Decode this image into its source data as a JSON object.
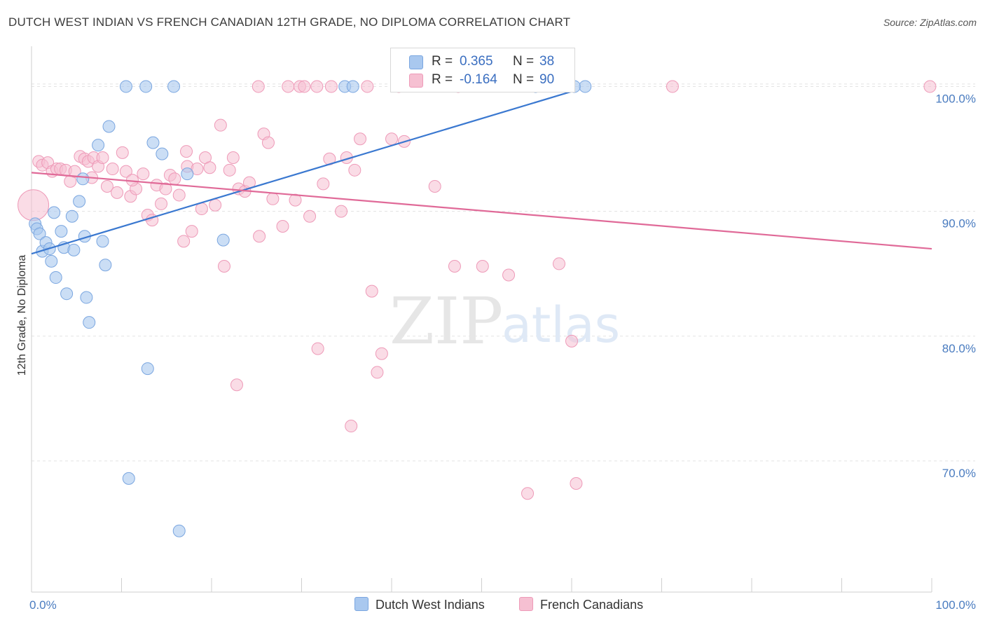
{
  "title": "DUTCH WEST INDIAN VS FRENCH CANADIAN 12TH GRADE, NO DIPLOMA CORRELATION CHART",
  "source": "Source: ZipAtlas.com",
  "watermark": {
    "zip": "ZIP",
    "atlas": "atlas"
  },
  "legend": {
    "rows": [
      {
        "r_label": "R =",
        "r_value": "0.365",
        "n_label": "N =",
        "n_value": "38"
      },
      {
        "r_label": "R =",
        "r_value": "-0.164",
        "n_label": "N =",
        "n_value": "90"
      }
    ]
  },
  "bottom_legend": {
    "series1": "Dutch West Indians",
    "series2": "French Canadians"
  },
  "colors": {
    "blue_fill": "#a9c8ef",
    "blue_stroke": "#7aa6e0",
    "blue_line": "#3a78d0",
    "pink_fill": "#f6c0d2",
    "pink_stroke": "#ee9ab8",
    "pink_line": "#e06a98"
  },
  "chart_data": {
    "type": "scatter",
    "xlabel": "",
    "ylabel": "12th Grade, No Diploma",
    "xlim": [
      0,
      100
    ],
    "ylim": [
      59.5,
      103
    ],
    "x_tick_labels": [
      "0.0%",
      "100.0%"
    ],
    "y_ticks": [
      70,
      80,
      90,
      100
    ],
    "y_tick_labels": [
      "70.0%",
      "80.0%",
      "90.0%",
      "100.0%"
    ],
    "series": [
      {
        "name": "Dutch West Indians",
        "r": 0.365,
        "n": 38,
        "trend": {
          "x": [
            0,
            60
          ],
          "y": [
            86.6,
            99.6
          ]
        },
        "points": [
          [
            0.4,
            89.0
          ],
          [
            0.6,
            88.6
          ],
          [
            0.9,
            88.2
          ],
          [
            1.2,
            86.8
          ],
          [
            1.6,
            87.5
          ],
          [
            2.0,
            87.0
          ],
          [
            2.2,
            86.0
          ],
          [
            2.5,
            89.9
          ],
          [
            2.7,
            84.7
          ],
          [
            3.3,
            88.4
          ],
          [
            3.9,
            83.4
          ],
          [
            3.6,
            87.1
          ],
          [
            4.7,
            86.9
          ],
          [
            4.5,
            89.6
          ],
          [
            5.3,
            90.8
          ],
          [
            5.7,
            92.6
          ],
          [
            6.1,
            83.1
          ],
          [
            6.4,
            81.1
          ],
          [
            5.9,
            88.0
          ],
          [
            7.4,
            95.3
          ],
          [
            7.9,
            87.6
          ],
          [
            8.2,
            85.7
          ],
          [
            8.6,
            96.8
          ],
          [
            10.5,
            100
          ],
          [
            12.7,
            100
          ],
          [
            10.8,
            68.6
          ],
          [
            12.9,
            77.4
          ],
          [
            13.5,
            95.5
          ],
          [
            14.5,
            94.6
          ],
          [
            15.8,
            100
          ],
          [
            17.3,
            93.0
          ],
          [
            16.4,
            64.4
          ],
          [
            21.3,
            87.7
          ],
          [
            34.8,
            100
          ],
          [
            35.7,
            100
          ],
          [
            56.0,
            100
          ],
          [
            61.5,
            100
          ],
          [
            60.3,
            100
          ]
        ]
      },
      {
        "name": "French Canadians",
        "r": -0.164,
        "n": 90,
        "trend": {
          "x": [
            0,
            100
          ],
          "y": [
            93.1,
            87.0
          ]
        },
        "points": [
          [
            0.2,
            90.5
          ],
          [
            0.8,
            94.0
          ],
          [
            1.2,
            93.7
          ],
          [
            1.8,
            93.9
          ],
          [
            2.3,
            93.2
          ],
          [
            2.8,
            93.4
          ],
          [
            3.2,
            93.4
          ],
          [
            3.8,
            93.3
          ],
          [
            4.3,
            92.4
          ],
          [
            4.8,
            93.2
          ],
          [
            5.4,
            94.4
          ],
          [
            5.9,
            94.2
          ],
          [
            6.3,
            94.0
          ],
          [
            6.9,
            94.3
          ],
          [
            7.4,
            93.6
          ],
          [
            7.9,
            94.3
          ],
          [
            8.4,
            92.0
          ],
          [
            9.0,
            93.4
          ],
          [
            9.5,
            91.5
          ],
          [
            10.1,
            94.7
          ],
          [
            10.5,
            93.2
          ],
          [
            11.0,
            91.2
          ],
          [
            11.6,
            91.8
          ],
          [
            12.4,
            93.0
          ],
          [
            12.9,
            89.7
          ],
          [
            13.4,
            89.3
          ],
          [
            13.9,
            92.1
          ],
          [
            14.4,
            90.6
          ],
          [
            14.9,
            91.8
          ],
          [
            15.4,
            92.9
          ],
          [
            15.9,
            92.6
          ],
          [
            16.4,
            91.3
          ],
          [
            16.9,
            87.6
          ],
          [
            17.3,
            93.6
          ],
          [
            17.8,
            88.4
          ],
          [
            18.4,
            93.4
          ],
          [
            18.9,
            90.2
          ],
          [
            19.3,
            94.3
          ],
          [
            19.8,
            93.5
          ],
          [
            20.4,
            90.5
          ],
          [
            21.0,
            96.9
          ],
          [
            21.4,
            85.6
          ],
          [
            22.0,
            93.3
          ],
          [
            22.4,
            94.3
          ],
          [
            23.0,
            91.8
          ],
          [
            23.7,
            91.6
          ],
          [
            24.2,
            92.3
          ],
          [
            25.3,
            88.0
          ],
          [
            25.8,
            96.2
          ],
          [
            26.3,
            95.5
          ],
          [
            26.8,
            91.0
          ],
          [
            27.9,
            88.8
          ],
          [
            28.5,
            100
          ],
          [
            29.3,
            90.9
          ],
          [
            29.8,
            100
          ],
          [
            30.3,
            100
          ],
          [
            30.9,
            89.6
          ],
          [
            31.8,
            79.0
          ],
          [
            32.4,
            92.2
          ],
          [
            33.1,
            94.2
          ],
          [
            33.3,
            100
          ],
          [
            34.4,
            90.0
          ],
          [
            35.0,
            94.3
          ],
          [
            35.5,
            72.8
          ],
          [
            35.9,
            93.3
          ],
          [
            36.5,
            95.8
          ],
          [
            37.3,
            100
          ],
          [
            37.8,
            83.6
          ],
          [
            38.4,
            77.1
          ],
          [
            38.9,
            78.6
          ],
          [
            40.0,
            95.8
          ],
          [
            41.4,
            95.6
          ],
          [
            44.8,
            92.0
          ],
          [
            47.0,
            85.6
          ],
          [
            47.4,
            100
          ],
          [
            50.1,
            85.6
          ],
          [
            53.0,
            84.9
          ],
          [
            55.1,
            67.4
          ],
          [
            58.6,
            85.8
          ],
          [
            60.0,
            79.6
          ],
          [
            60.5,
            68.2
          ],
          [
            71.2,
            100
          ],
          [
            25.2,
            100
          ],
          [
            22.8,
            76.1
          ],
          [
            40.8,
            100
          ],
          [
            31.7,
            100
          ],
          [
            11.2,
            92.5
          ],
          [
            17.2,
            94.8
          ],
          [
            99.8,
            100
          ],
          [
            6.7,
            92.7
          ]
        ]
      }
    ]
  }
}
